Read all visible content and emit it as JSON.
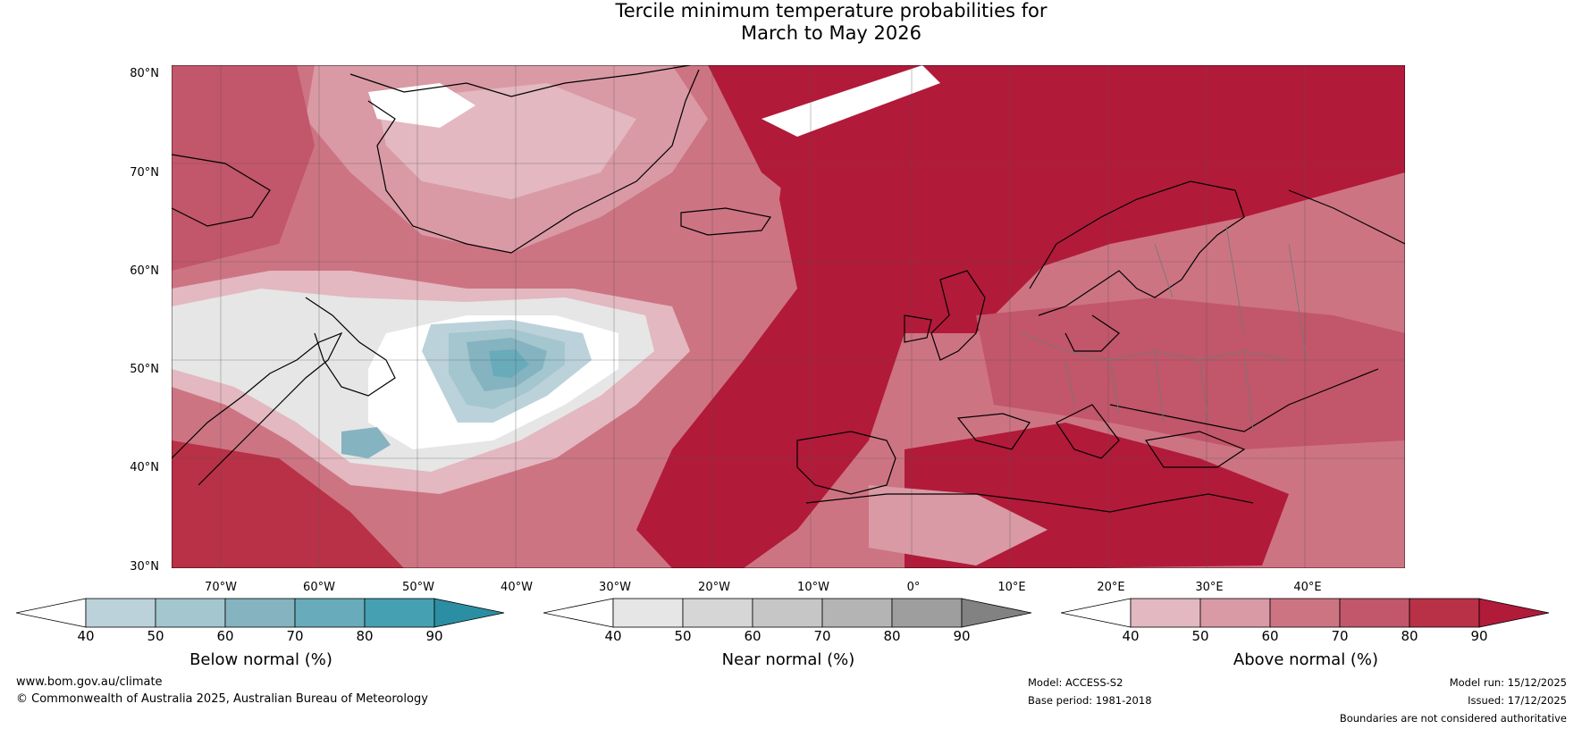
{
  "title": {
    "line1": "Tercile minimum temperature probabilities for",
    "line2": "March to May 2026"
  },
  "lat_labels": [
    "80°N",
    "70°N",
    "60°N",
    "50°N",
    "40°N",
    "30°N"
  ],
  "lon_labels": [
    "70°W",
    "60°W",
    "50°W",
    "40°W",
    "30°W",
    "20°W",
    "10°W",
    "0°",
    "10°E",
    "20°E",
    "30°E",
    "40°E"
  ],
  "colorbars": [
    {
      "label": "Below normal (%)",
      "ticks": [
        "40",
        "50",
        "60",
        "70",
        "80",
        "90"
      ],
      "colors": [
        "#ffffff",
        "#bcd2da",
        "#a4c6ce",
        "#85b3c0",
        "#68abbb",
        "#45a0b2",
        "#2b8ea2"
      ]
    },
    {
      "label": "Near normal (%)",
      "ticks": [
        "40",
        "50",
        "60",
        "70",
        "80",
        "90"
      ],
      "colors": [
        "#ffffff",
        "#e6e6e6",
        "#d6d6d6",
        "#c6c6c6",
        "#b4b4b4",
        "#9e9e9e",
        "#828282"
      ]
    },
    {
      "label": "Above normal (%)",
      "ticks": [
        "40",
        "50",
        "60",
        "70",
        "80",
        "90"
      ],
      "colors": [
        "#ffffff",
        "#e3b8c0",
        "#d99aa5",
        "#cd7483",
        "#c2566a",
        "#b93147",
        "#b21a3a"
      ]
    }
  ],
  "footer": {
    "url": "www.bom.gov.au/climate",
    "copyright": "© Commonwealth of Australia 2025, Australian Bureau of Meteorology",
    "model": "Model: ACCESS-S2",
    "base_period": "Base period: 1981-2018",
    "model_run": "Model run: 15/12/2025",
    "issued": "Issued: 17/12/2025",
    "disclaimer": "Boundaries are not considered authoritative"
  },
  "map_colors": {
    "ocean_deep": "#b21a3a",
    "above_80": "#c2566a",
    "above_70": "#cd7483",
    "above_60": "#d99aa5",
    "above_50": "#e3b8c0",
    "near_50": "#e6e6e6",
    "white": "#ffffff",
    "below_50": "#bcd2da",
    "below_60": "#a4c6ce",
    "below_70": "#85b3c0",
    "below_80": "#68abbb"
  }
}
